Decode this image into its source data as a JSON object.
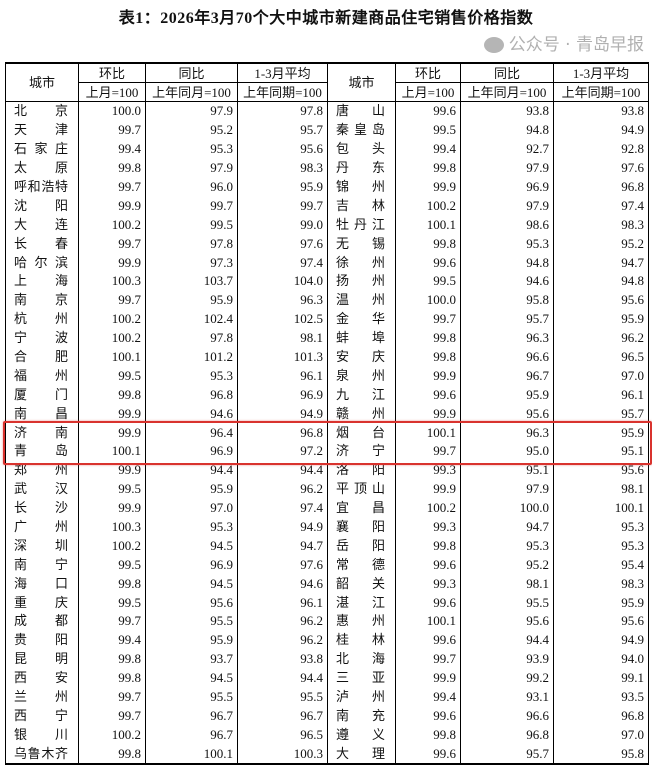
{
  "title": "表1：2026年3月70个大中城市新建商品住宅销售价格指数",
  "headers": {
    "city": "城市",
    "mom": "环比",
    "yoy": "同比",
    "avg": "1-3月平均",
    "mom_base": "上月=100",
    "yoy_base": "上年同月=100",
    "avg_base": "上年同期=100"
  },
  "highlight_color": "#d9332e",
  "watermark": {
    "icon": "wechat-icon",
    "text": "公众号 · 青岛早报"
  },
  "rows": [
    {
      "left": [
        "北京",
        "100.0",
        "97.9",
        "97.8"
      ],
      "right": [
        "唐山",
        "99.6",
        "93.8",
        "93.8"
      ]
    },
    {
      "left": [
        "天津",
        "99.7",
        "95.2",
        "95.7"
      ],
      "right": [
        "秦皇岛",
        "99.5",
        "94.8",
        "94.9"
      ]
    },
    {
      "left": [
        "石家庄",
        "99.4",
        "95.3",
        "95.6"
      ],
      "right": [
        "包头",
        "99.4",
        "92.7",
        "92.8"
      ]
    },
    {
      "left": [
        "太原",
        "99.8",
        "97.9",
        "98.3"
      ],
      "right": [
        "丹东",
        "99.8",
        "97.9",
        "97.6"
      ]
    },
    {
      "left": [
        "呼和浩特",
        "99.7",
        "96.0",
        "95.9"
      ],
      "right": [
        "锦州",
        "99.9",
        "96.9",
        "96.8"
      ]
    },
    {
      "left": [
        "沈阳",
        "99.9",
        "99.7",
        "99.7"
      ],
      "right": [
        "吉林",
        "100.2",
        "97.9",
        "97.4"
      ]
    },
    {
      "left": [
        "大连",
        "100.2",
        "99.5",
        "99.0"
      ],
      "right": [
        "牡丹江",
        "100.1",
        "98.6",
        "98.3"
      ]
    },
    {
      "left": [
        "长春",
        "99.7",
        "97.8",
        "97.6"
      ],
      "right": [
        "无锡",
        "99.8",
        "95.3",
        "95.2"
      ]
    },
    {
      "left": [
        "哈尔滨",
        "99.9",
        "97.3",
        "97.4"
      ],
      "right": [
        "徐州",
        "99.6",
        "94.8",
        "94.7"
      ]
    },
    {
      "left": [
        "上海",
        "100.3",
        "103.7",
        "104.0"
      ],
      "right": [
        "扬州",
        "99.5",
        "94.6",
        "94.8"
      ]
    },
    {
      "left": [
        "南京",
        "99.7",
        "95.9",
        "96.3"
      ],
      "right": [
        "温州",
        "100.0",
        "95.8",
        "95.6"
      ]
    },
    {
      "left": [
        "杭州",
        "100.2",
        "102.4",
        "102.5"
      ],
      "right": [
        "金华",
        "99.7",
        "95.7",
        "95.9"
      ]
    },
    {
      "left": [
        "宁波",
        "100.2",
        "97.8",
        "98.1"
      ],
      "right": [
        "蚌埠",
        "99.8",
        "96.3",
        "96.2"
      ]
    },
    {
      "left": [
        "合肥",
        "100.1",
        "101.2",
        "101.3"
      ],
      "right": [
        "安庆",
        "99.8",
        "96.6",
        "96.5"
      ]
    },
    {
      "left": [
        "福州",
        "99.5",
        "95.3",
        "96.1"
      ],
      "right": [
        "泉州",
        "99.9",
        "96.7",
        "97.0"
      ]
    },
    {
      "left": [
        "厦门",
        "99.8",
        "96.8",
        "96.9"
      ],
      "right": [
        "九江",
        "99.6",
        "95.9",
        "96.1"
      ]
    },
    {
      "left": [
        "南昌",
        "99.9",
        "94.6",
        "94.9"
      ],
      "right": [
        "赣州",
        "99.9",
        "95.6",
        "95.7"
      ]
    },
    {
      "left": [
        "济南",
        "99.9",
        "96.4",
        "96.8"
      ],
      "right": [
        "烟台",
        "100.1",
        "96.3",
        "95.9"
      ]
    },
    {
      "left": [
        "青岛",
        "100.1",
        "96.9",
        "97.2"
      ],
      "right": [
        "济宁",
        "99.7",
        "95.0",
        "95.1"
      ]
    },
    {
      "left": [
        "郑州",
        "99.9",
        "94.4",
        "94.4"
      ],
      "right": [
        "洛阳",
        "99.3",
        "95.1",
        "95.6"
      ]
    },
    {
      "left": [
        "武汉",
        "99.5",
        "95.9",
        "96.2"
      ],
      "right": [
        "平顶山",
        "99.9",
        "97.9",
        "98.1"
      ]
    },
    {
      "left": [
        "长沙",
        "99.9",
        "97.0",
        "97.4"
      ],
      "right": [
        "宜昌",
        "100.2",
        "100.0",
        "100.1"
      ]
    },
    {
      "left": [
        "广州",
        "100.3",
        "95.3",
        "94.9"
      ],
      "right": [
        "襄阳",
        "99.3",
        "94.7",
        "95.3"
      ]
    },
    {
      "left": [
        "深圳",
        "100.2",
        "94.5",
        "94.7"
      ],
      "right": [
        "岳阳",
        "99.8",
        "95.3",
        "95.3"
      ]
    },
    {
      "left": [
        "南宁",
        "99.5",
        "96.9",
        "97.6"
      ],
      "right": [
        "常德",
        "99.6",
        "95.2",
        "95.4"
      ]
    },
    {
      "left": [
        "海口",
        "99.8",
        "94.5",
        "94.6"
      ],
      "right": [
        "韶关",
        "99.3",
        "98.1",
        "98.3"
      ]
    },
    {
      "left": [
        "重庆",
        "99.5",
        "95.6",
        "96.1"
      ],
      "right": [
        "湛江",
        "99.6",
        "95.5",
        "95.9"
      ]
    },
    {
      "left": [
        "成都",
        "99.7",
        "95.5",
        "96.2"
      ],
      "right": [
        "惠州",
        "100.1",
        "95.6",
        "95.6"
      ]
    },
    {
      "left": [
        "贵阳",
        "99.4",
        "95.9",
        "96.2"
      ],
      "right": [
        "桂林",
        "99.6",
        "94.4",
        "94.9"
      ]
    },
    {
      "left": [
        "昆明",
        "99.8",
        "93.7",
        "93.8"
      ],
      "right": [
        "北海",
        "99.7",
        "93.9",
        "94.0"
      ]
    },
    {
      "left": [
        "西安",
        "99.8",
        "94.5",
        "94.4"
      ],
      "right": [
        "三亚",
        "99.9",
        "99.2",
        "99.1"
      ]
    },
    {
      "left": [
        "兰州",
        "99.7",
        "95.5",
        "95.5"
      ],
      "right": [
        "泸州",
        "99.4",
        "93.1",
        "93.5"
      ]
    },
    {
      "left": [
        "西宁",
        "99.7",
        "96.7",
        "96.7"
      ],
      "right": [
        "南充",
        "99.6",
        "96.6",
        "96.8"
      ]
    },
    {
      "left": [
        "银川",
        "100.2",
        "96.7",
        "96.5"
      ],
      "right": [
        "遵义",
        "99.8",
        "96.8",
        "97.0"
      ]
    },
    {
      "left": [
        "乌鲁木齐",
        "99.8",
        "100.1",
        "100.3"
      ],
      "right": [
        "大理",
        "99.6",
        "95.7",
        "95.8"
      ]
    }
  ]
}
